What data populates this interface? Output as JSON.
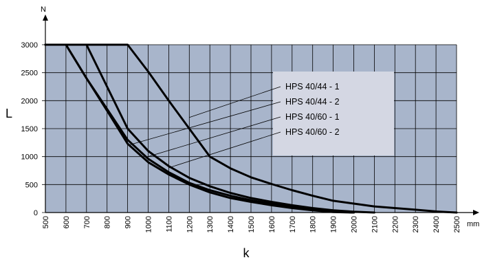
{
  "chart_data": {
    "type": "line",
    "title": "",
    "xlabel": "k",
    "ylabel": "L",
    "x_unit": "mm",
    "y_unit": "N",
    "xlim": [
      500,
      2500
    ],
    "ylim": [
      0,
      3000
    ],
    "x_ticks": [
      "500",
      "600",
      "700",
      "800",
      "900",
      "1000",
      "1100",
      "1200",
      "1300",
      "1400",
      "1500",
      "1600",
      "1700",
      "1800",
      "1900",
      "2000",
      "2100",
      "2200",
      "2300",
      "2400",
      "2500"
    ],
    "y_ticks": [
      "0",
      "500",
      "1000",
      "1500",
      "2000",
      "2500",
      "3000"
    ],
    "grid": true,
    "legend_position": "right, inside plot (leader lines to curves)",
    "colors": {
      "plot_background": "#a8b5cb",
      "legend_background": "#d4d7e3",
      "grid": "#000000",
      "series": "#000000"
    },
    "series": [
      {
        "name": "HPS 40/44 - 1",
        "x": [
          500,
          900,
          1000,
          1100,
          1200,
          1300,
          1400,
          1500,
          1600,
          1700,
          1800,
          1900,
          2000,
          2100,
          2200,
          2300,
          2400,
          2500
        ],
        "y": [
          3000,
          3000,
          2520,
          2000,
          1500,
          1000,
          790,
          630,
          510,
          400,
          300,
          210,
          160,
          110,
          80,
          50,
          20,
          0
        ]
      },
      {
        "name": "HPS 40/44 - 2",
        "x": [
          500,
          700,
          800,
          900,
          1000,
          1100,
          1200,
          1300,
          1400,
          1500,
          1600,
          1700,
          1800,
          1900,
          2000,
          2100
        ],
        "y": [
          3000,
          3000,
          2250,
          1500,
          1100,
          830,
          620,
          470,
          350,
          260,
          190,
          130,
          80,
          40,
          15,
          0
        ]
      },
      {
        "name": "HPS 40/60 - 1",
        "x": [
          500,
          600,
          700,
          800,
          900,
          1000,
          1100,
          1200,
          1300,
          1400,
          1500,
          1600,
          1700,
          1800,
          1900,
          2000
        ],
        "y": [
          3000,
          3000,
          2400,
          1850,
          1300,
          960,
          720,
          530,
          400,
          300,
          220,
          160,
          100,
          60,
          25,
          0
        ]
      },
      {
        "name": "HPS 40/60 - 2",
        "x": [
          500,
          600,
          700,
          800,
          900,
          1000,
          1100,
          1200,
          1300,
          1400,
          1500,
          1600,
          1700,
          1800,
          1900,
          2000
        ],
        "y": [
          3000,
          3000,
          2400,
          1820,
          1230,
          900,
          680,
          500,
          360,
          260,
          190,
          130,
          80,
          40,
          10,
          0
        ]
      }
    ]
  }
}
